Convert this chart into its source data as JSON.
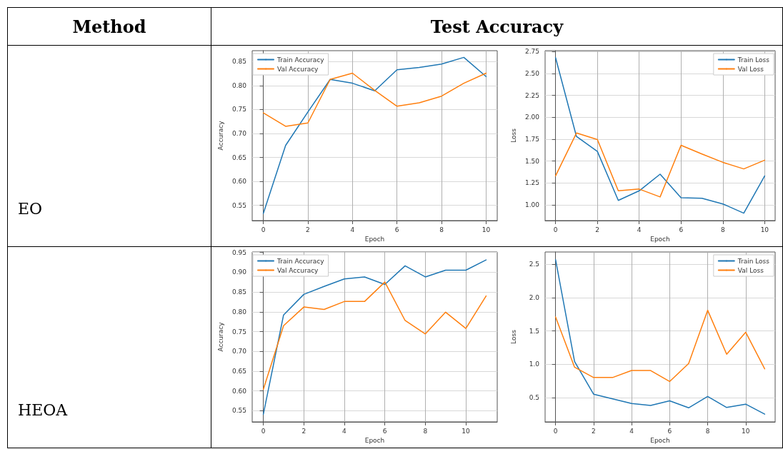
{
  "chart_data": [
    {
      "type": "line",
      "xlabel": "Epoch",
      "ylabel": "Accuracy",
      "annotations": [
        "Method",
        "Test Accuracy",
        "EO"
      ],
      "x": [
        0,
        1,
        2,
        3,
        4,
        5,
        6,
        7,
        8,
        9,
        10
      ],
      "series": [
        {
          "name": "Train Accuracy",
          "color": "#1f77b4",
          "values": [
            0.533,
            0.675,
            0.745,
            0.813,
            0.805,
            0.789,
            0.833,
            0.838,
            0.845,
            0.859,
            0.819
          ]
        },
        {
          "name": "Val Accuracy",
          "color": "#ff7f0e",
          "values": [
            0.743,
            0.715,
            0.722,
            0.813,
            0.826,
            0.79,
            0.757,
            0.764,
            0.778,
            0.805,
            0.826
          ]
        }
      ],
      "xlim": [
        -0.5,
        10.5
      ],
      "xticks": [
        0,
        2,
        4,
        6,
        8,
        10
      ],
      "ylim": [
        0.518,
        0.873
      ],
      "yticks": [
        0.55,
        {
          "value": 0.6,
          "label": "0.60"
        },
        0.65,
        {
          "value": 0.7,
          "label": "0.70"
        },
        0.75,
        {
          "value": 0.8,
          "label": "0.80"
        },
        0.85
      ],
      "grid": true,
      "legend": "top left",
      "marker": "none",
      "line_style": "solid"
    },
    {
      "type": "line",
      "xlabel": "Epoch",
      "ylabel": "Loss",
      "x": [
        0,
        1,
        2,
        3,
        4,
        5,
        6,
        7,
        8,
        9,
        10
      ],
      "series": [
        {
          "name": "Train Loss",
          "color": "#1f77b4",
          "values": [
            2.68,
            1.78,
            1.61,
            1.05,
            1.16,
            1.35,
            1.08,
            1.075,
            1.01,
            0.905,
            1.33
          ]
        },
        {
          "name": "Val Loss",
          "color": "#ff7f0e",
          "values": [
            1.33,
            1.82,
            1.745,
            1.16,
            1.18,
            1.09,
            1.68,
            1.58,
            1.485,
            1.41,
            1.51
          ]
        }
      ],
      "xlim": [
        -0.5,
        10.5
      ],
      "xticks": [
        0,
        2,
        4,
        6,
        8,
        10
      ],
      "ylim": [
        0.82,
        2.76
      ],
      "yticks": [
        {
          "value": 1,
          "label": "1.00"
        },
        1.25,
        {
          "value": 1.5,
          "label": "1.50"
        },
        1.75,
        {
          "value": 2,
          "label": "2.00"
        },
        2.25,
        {
          "value": 2.5,
          "label": "2.50"
        },
        2.75
      ],
      "grid": true,
      "legend": "top right",
      "marker": "none",
      "line_style": "solid"
    },
    {
      "type": "line",
      "xlabel": "Epoch",
      "ylabel": "Accuracy",
      "annotations": [
        "HEOA"
      ],
      "x": [
        0,
        1,
        2,
        3,
        4,
        5,
        6,
        7,
        8,
        9,
        10,
        11
      ],
      "series": [
        {
          "name": "Train Accuracy",
          "color": "#1f77b4",
          "values": [
            0.541,
            0.792,
            0.844,
            0.864,
            0.883,
            0.888,
            0.869,
            0.916,
            0.888,
            0.905,
            0.905,
            0.931
          ]
        },
        {
          "name": "Val Accuracy",
          "color": "#ff7f0e",
          "values": [
            0.604,
            0.765,
            0.812,
            0.806,
            0.826,
            0.826,
            0.875,
            0.778,
            0.744,
            0.799,
            0.758,
            0.84
          ]
        }
      ],
      "xlim": [
        -0.55,
        11.55
      ],
      "xticks": [
        0,
        2,
        4,
        6,
        8,
        10
      ],
      "ylim": [
        0.522,
        0.951
      ],
      "yticks": [
        0.55,
        {
          "value": 0.6,
          "label": "0.60"
        },
        0.65,
        {
          "value": 0.7,
          "label": "0.70"
        },
        0.75,
        {
          "value": 0.8,
          "label": "0.80"
        },
        0.85,
        {
          "value": 0.9,
          "label": "0.90"
        },
        0.95
      ],
      "grid": true,
      "legend": "top left",
      "marker": "none",
      "line_style": "solid"
    },
    {
      "type": "line",
      "xlabel": "Epoch",
      "ylabel": "Loss",
      "x": [
        0,
        1,
        2,
        3,
        4,
        5,
        6,
        7,
        8,
        9,
        10,
        11
      ],
      "series": [
        {
          "name": "Train Loss",
          "color": "#1f77b4",
          "values": [
            2.57,
            1.04,
            0.55,
            0.48,
            0.41,
            0.38,
            0.45,
            0.345,
            0.515,
            0.35,
            0.4,
            0.25
          ]
        },
        {
          "name": "Val Loss",
          "color": "#ff7f0e",
          "values": [
            1.71,
            0.955,
            0.8,
            0.8,
            0.905,
            0.905,
            0.74,
            1.01,
            1.81,
            1.15,
            1.48,
            0.93
          ]
        }
      ],
      "xlim": [
        -0.55,
        11.55
      ],
      "xticks": [
        0,
        2,
        4,
        6,
        8,
        10
      ],
      "ylim": [
        0.134,
        2.685
      ],
      "yticks": [
        0.5,
        {
          "value": 1,
          "label": "1.0"
        },
        1.5,
        {
          "value": 2,
          "label": "2.0"
        },
        2.5
      ],
      "grid": true,
      "legend": "top right",
      "marker": "none",
      "line_style": "solid"
    }
  ]
}
